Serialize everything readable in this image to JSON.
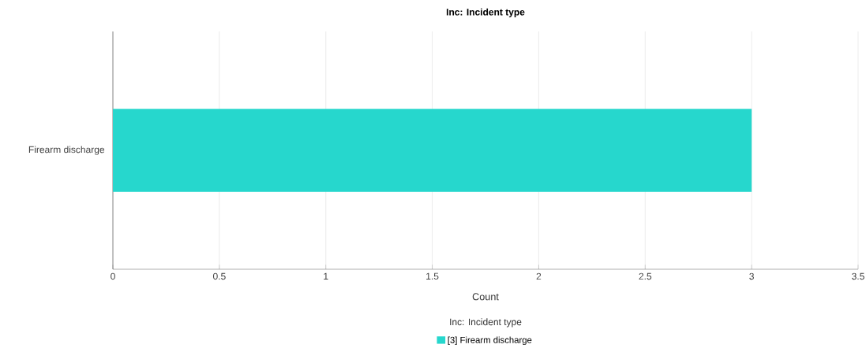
{
  "chart_data": {
    "type": "bar",
    "orientation": "horizontal",
    "title": "Inc: Incident type",
    "xlabel": "Count",
    "legend_title": "Inc: Incident type",
    "categories": [
      "Firearm discharge"
    ],
    "series": [
      {
        "name": "[3] Firearm discharge",
        "color": "#26d7cd",
        "values": [
          3
        ]
      }
    ],
    "xlim": [
      0,
      3.5
    ],
    "xticks": [
      0,
      0.5,
      1,
      1.5,
      2,
      2.5,
      3,
      3.5
    ],
    "grid": "x",
    "legend": "bottom"
  }
}
